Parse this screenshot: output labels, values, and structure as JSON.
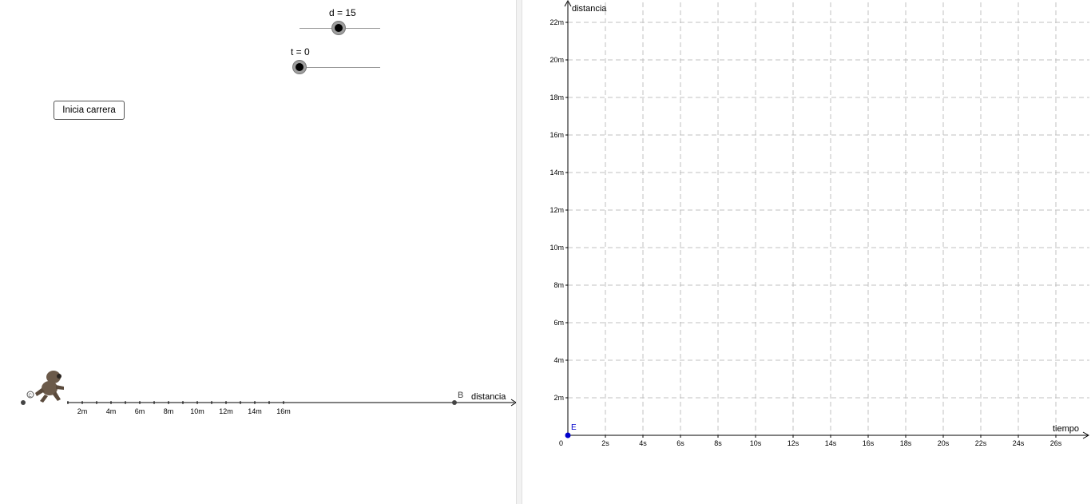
{
  "sliders": {
    "d": {
      "label": "d = 15",
      "value": 15
    },
    "t": {
      "label": "t = 0",
      "value": 0
    }
  },
  "start_button": {
    "label": "Inicia carrera"
  },
  "race_track": {
    "axis_label": "distancia",
    "tick_labels": [
      "2m",
      "4m",
      "6m",
      "8m",
      "10m",
      "12m",
      "14m",
      "16m"
    ],
    "point_b_label": "B",
    "point_c_label": "C"
  },
  "graph": {
    "y_axis_label": "distancia",
    "x_axis_label": "tiempo",
    "origin_label": "0",
    "point_e_label": "E",
    "y_tick_labels": [
      "2m",
      "4m",
      "6m",
      "8m",
      "10m",
      "12m",
      "14m",
      "16m",
      "18m",
      "20m",
      "22m"
    ],
    "x_tick_labels": [
      "2s",
      "4s",
      "6s",
      "8s",
      "10s",
      "12s",
      "14s",
      "16s",
      "18s",
      "20s",
      "22s",
      "24s",
      "26s"
    ],
    "point_color": "#0000cc"
  }
}
